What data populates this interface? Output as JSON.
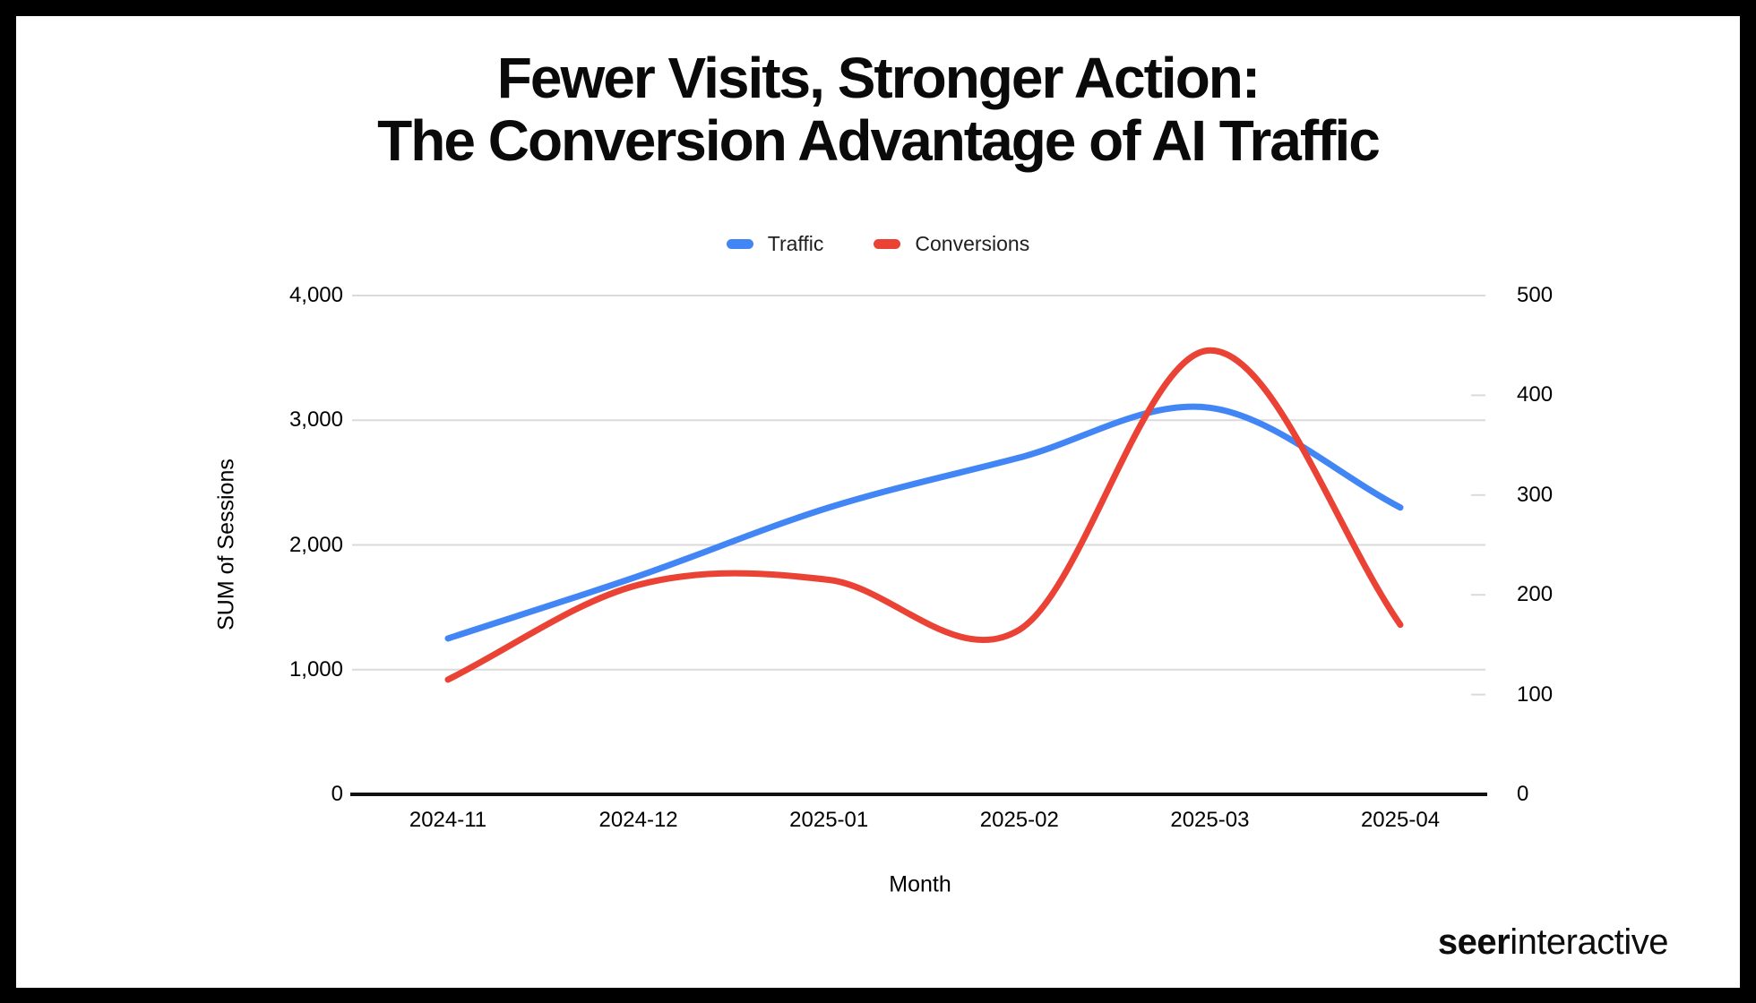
{
  "title": {
    "line1": "Fewer Visits, Stronger Action:",
    "line2": "The Conversion Advantage of AI Traffic"
  },
  "legend": [
    {
      "label": "Traffic",
      "color": "#4285f4"
    },
    {
      "label": "Conversions",
      "color": "#ea4335"
    }
  ],
  "chart_data": {
    "type": "line",
    "title": "Fewer Visits, Stronger Action: The Conversion Advantage of AI Traffic",
    "x": [
      "2024-11",
      "2024-12",
      "2025-01",
      "2025-02",
      "2025-03",
      "2025-04"
    ],
    "series": [
      {
        "name": "Traffic",
        "axis": "left",
        "color": "#4285f4",
        "values": [
          1250,
          1750,
          2300,
          2700,
          3100,
          2300
        ]
      },
      {
        "name": "Conversions",
        "axis": "right",
        "color": "#ea4335",
        "values": [
          115,
          210,
          215,
          165,
          445,
          170
        ]
      }
    ],
    "xlabel": "Month",
    "ylabel_left": "SUM of Sessions",
    "left_axis": {
      "min": 0,
      "max": 4000,
      "tick_values": [
        0,
        1000,
        2000,
        3000,
        4000
      ],
      "tick_labels": [
        "0",
        "1,000",
        "2,000",
        "3,000",
        "4,000"
      ]
    },
    "right_axis": {
      "min": 0,
      "max": 500,
      "tick_values": [
        0,
        100,
        200,
        300,
        400,
        500
      ],
      "tick_labels": [
        "0",
        "100",
        "200",
        "300",
        "400",
        "500"
      ]
    },
    "smooth": true,
    "grid": "horizontal",
    "legend_position": "top",
    "grid_color": "#dadada",
    "baseline_color": "#111111"
  },
  "footer": {
    "logo_bold": "seer",
    "logo_regular": "interactive"
  }
}
